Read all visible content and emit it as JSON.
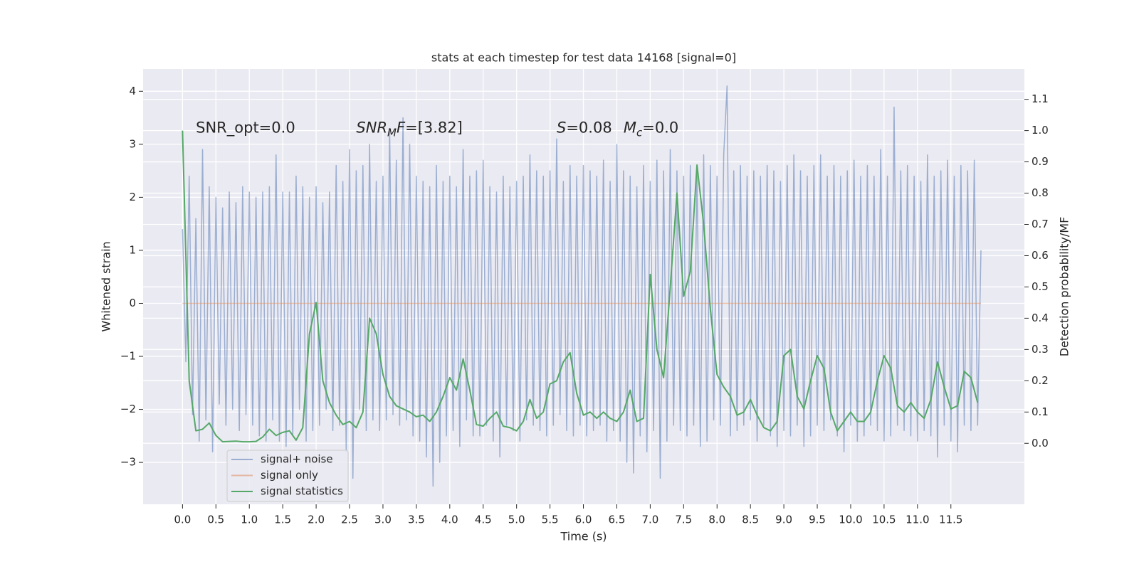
{
  "chart_data": {
    "type": "line",
    "title": "stats at each timestep for test data 14168 [signal=0]",
    "xlabel": "Time (s)",
    "ylabel": "Whitened strain",
    "y2label": "Detection probability/MF",
    "xlim": [
      -0.59,
      12.6
    ],
    "ylim": [
      -3.79,
      4.42
    ],
    "y2lim": [
      -0.195,
      1.197
    ],
    "xticks": [
      {
        "value": 0,
        "label": "0.0"
      },
      0.5,
      {
        "value": 1,
        "label": "1.0"
      },
      1.5,
      {
        "value": 2,
        "label": "2.0"
      },
      2.5,
      {
        "value": 3,
        "label": "3.0"
      },
      3.5,
      {
        "value": 4,
        "label": "4.0"
      },
      4.5,
      {
        "value": 5,
        "label": "5.0"
      },
      5.5,
      {
        "value": 6,
        "label": "6.0"
      },
      6.5,
      {
        "value": 7,
        "label": "7.0"
      },
      7.5,
      {
        "value": 8,
        "label": "8.0"
      },
      8.5,
      {
        "value": 9,
        "label": "9.0"
      },
      9.5,
      {
        "value": 10,
        "label": "10.0"
      },
      10.5,
      {
        "value": 11,
        "label": "11.0"
      },
      11.5
    ],
    "yticks": [
      {
        "value": -3,
        "label": "−3"
      },
      {
        "value": -2,
        "label": "−2"
      },
      {
        "value": -1,
        "label": "−1"
      },
      0,
      1,
      2,
      3,
      4
    ],
    "y2ticks": [
      {
        "value": 0,
        "label": "0.0"
      },
      0.1,
      0.2,
      0.3,
      0.4,
      0.5,
      0.6,
      0.7,
      0.8,
      0.9,
      {
        "value": 1,
        "label": "1.0"
      },
      1.1
    ],
    "grid": true,
    "legend": "lower left",
    "annotations": [
      {
        "parts": [
          {
            "text": "SNR_opt=0.0"
          }
        ]
      },
      {
        "parts": [
          {
            "text": "SNR",
            "style": "italic"
          },
          {
            "text": "M",
            "style": "italic-sub"
          },
          {
            "text": "F",
            "style": "italic"
          },
          {
            "text": "=[3.82]"
          }
        ]
      },
      {
        "parts": [
          {
            "text": "S",
            "style": "italic"
          },
          {
            "text": "=0.08"
          }
        ]
      },
      {
        "parts": [
          {
            "text": "M",
            "style": "italic"
          },
          {
            "text": "c",
            "style": "italic-sub"
          },
          {
            "text": "=0.0"
          }
        ]
      }
    ],
    "series": [
      {
        "name": "signal+ noise",
        "color": "#4c72b0",
        "opacity": 0.5,
        "axis": "y",
        "x": [
          0,
          0.05,
          0.1,
          0.15,
          0.2,
          0.25,
          0.3,
          0.35,
          0.4,
          0.45,
          0.5,
          0.55,
          0.6,
          0.65,
          0.7,
          0.75,
          0.8,
          0.85,
          0.9,
          0.95,
          1,
          1.05,
          1.1,
          1.15,
          1.2,
          1.25,
          1.3,
          1.35,
          1.4,
          1.45,
          1.5,
          1.55,
          1.6,
          1.65,
          1.7,
          1.75,
          1.8,
          1.85,
          1.9,
          1.95,
          2,
          2.05,
          2.1,
          2.15,
          2.2,
          2.25,
          2.3,
          2.35,
          2.4,
          2.45,
          2.5,
          2.55,
          2.6,
          2.65,
          2.7,
          2.75,
          2.8,
          2.85,
          2.9,
          2.95,
          3,
          3.05,
          3.1,
          3.15,
          3.2,
          3.25,
          3.3,
          3.35,
          3.4,
          3.45,
          3.5,
          3.55,
          3.6,
          3.65,
          3.7,
          3.75,
          3.8,
          3.85,
          3.9,
          3.95,
          4,
          4.05,
          4.1,
          4.15,
          4.2,
          4.25,
          4.3,
          4.35,
          4.4,
          4.45,
          4.5,
          4.55,
          4.6,
          4.65,
          4.7,
          4.75,
          4.8,
          4.85,
          4.9,
          4.95,
          5,
          5.05,
          5.1,
          5.15,
          5.2,
          5.25,
          5.3,
          5.35,
          5.4,
          5.45,
          5.5,
          5.55,
          5.6,
          5.65,
          5.7,
          5.75,
          5.8,
          5.85,
          5.9,
          5.95,
          6,
          6.05,
          6.1,
          6.15,
          6.2,
          6.25,
          6.3,
          6.35,
          6.4,
          6.45,
          6.5,
          6.55,
          6.6,
          6.65,
          6.7,
          6.75,
          6.8,
          6.85,
          6.9,
          6.95,
          7,
          7.05,
          7.1,
          7.15,
          7.2,
          7.25,
          7.3,
          7.35,
          7.4,
          7.45,
          7.5,
          7.55,
          7.6,
          7.65,
          7.7,
          7.75,
          7.8,
          7.85,
          7.9,
          7.95,
          8,
          8.05,
          8.1,
          8.15,
          8.2,
          8.25,
          8.3,
          8.35,
          8.4,
          8.45,
          8.5,
          8.55,
          8.6,
          8.65,
          8.7,
          8.75,
          8.8,
          8.85,
          8.9,
          8.95,
          9,
          9.05,
          9.1,
          9.15,
          9.2,
          9.25,
          9.3,
          9.35,
          9.4,
          9.45,
          9.5,
          9.55,
          9.6,
          9.65,
          9.7,
          9.75,
          9.8,
          9.85,
          9.9,
          9.95,
          10,
          10.05,
          10.1,
          10.15,
          10.2,
          10.25,
          10.3,
          10.35,
          10.4,
          10.45,
          10.5,
          10.55,
          10.6,
          10.65,
          10.7,
          10.75,
          10.8,
          10.85,
          10.9,
          10.95,
          11,
          11.05,
          11.1,
          11.15,
          11.2,
          11.25,
          11.3,
          11.35,
          11.4,
          11.45,
          11.5,
          11.55,
          11.6,
          11.65,
          11.7,
          11.75,
          11.8,
          11.85,
          11.9,
          11.95
        ],
        "values": [
          1.4,
          -1.1,
          2.4,
          -2.1,
          1.6,
          -2.6,
          2.9,
          -2.2,
          2.2,
          -2.8,
          2.0,
          -1.9,
          1.8,
          -2.3,
          2.1,
          -2.0,
          1.9,
          -2.4,
          2.2,
          -2.1,
          2.1,
          -2.3,
          2.0,
          -2.5,
          2.1,
          -2.6,
          2.2,
          -2.2,
          2.8,
          -2.6,
          2.1,
          -2.7,
          2.1,
          -2.5,
          2.4,
          -2.0,
          2.2,
          -2.6,
          2.0,
          -2.4,
          2.2,
          -2.3,
          1.9,
          -2.0,
          2.1,
          -2.4,
          2.6,
          -2.3,
          2.3,
          -2.8,
          2.9,
          -3.3,
          2.5,
          -2.0,
          2.6,
          -2.4,
          3.0,
          -2.2,
          2.3,
          -2.4,
          2.4,
          -2.2,
          3.3,
          -2.1,
          2.7,
          -2.3,
          3.5,
          -2.2,
          3.0,
          -2.5,
          2.4,
          -2.6,
          2.3,
          -2.9,
          2.2,
          -3.45,
          2.6,
          -3.0,
          2.3,
          -2.5,
          2.4,
          -2.4,
          2.2,
          -2.7,
          2.9,
          -2.2,
          2.4,
          -2.5,
          2.5,
          -2.5,
          2.7,
          -2.3,
          2.2,
          -2.6,
          2.1,
          -2.9,
          2.4,
          -2.3,
          2.2,
          -2.4,
          2.3,
          -2.6,
          2.4,
          -2.2,
          2.8,
          -2.3,
          2.5,
          -2.4,
          2.4,
          -2.5,
          2.5,
          -2.3,
          3.1,
          -2.1,
          2.3,
          -2.4,
          2.6,
          -2.5,
          2.4,
          -2.3,
          2.6,
          -2.5,
          2.5,
          -2.4,
          2.4,
          -2.3,
          2.7,
          -2.6,
          2.3,
          -2.4,
          3.0,
          -2.6,
          2.5,
          -3.0,
          2.4,
          -3.2,
          2.2,
          -2.5,
          2.6,
          -2.8,
          2.3,
          -2.4,
          2.7,
          -3.3,
          2.5,
          -2.6,
          2.9,
          -2.3,
          2.5,
          -2.4,
          2.4,
          -2.5,
          2.6,
          -2.3,
          2.5,
          -2.7,
          2.8,
          -2.6,
          2.6,
          -2.2,
          2.4,
          -2.3,
          2.8,
          4.1,
          -2.5,
          2.5,
          -2.4,
          2.6,
          -2.3,
          2.4,
          -2.2,
          2.5,
          -2.6,
          2.4,
          -2.3,
          2.6,
          -2.5,
          2.5,
          -2.7,
          2.3,
          -2.4,
          2.6,
          -2.5,
          2.8,
          -2.3,
          2.5,
          -2.7,
          2.4,
          -2.5,
          2.6,
          -2.3,
          2.8,
          -2.4,
          2.4,
          -2.2,
          2.6,
          -2.5,
          2.4,
          -2.8,
          2.5,
          -2.3,
          2.7,
          -2.6,
          2.4,
          -2.5,
          2.6,
          -2.3,
          2.4,
          -2.4,
          2.9,
          -2.6,
          2.4,
          -2.5,
          3.7,
          -2.3,
          2.5,
          -2.4,
          2.6,
          -2.5,
          2.4,
          -2.6,
          2.3,
          -2.4,
          2.8,
          -2.5,
          2.4,
          -2.9,
          2.5,
          -2.3,
          2.7,
          -2.6,
          2.4,
          -2.8,
          2.6,
          -2.3,
          2.5,
          -2.4,
          2.7,
          -2.3,
          1.0
        ]
      },
      {
        "name": "signal only",
        "color": "#dd8452",
        "opacity": 0.5,
        "axis": "y",
        "x": [
          0,
          11.95
        ],
        "values": [
          0,
          0
        ]
      },
      {
        "name": "signal statistics",
        "color": "#55a868",
        "opacity": 1,
        "axis": "y2",
        "x": [
          0,
          0.1,
          0.2,
          0.3,
          0.4,
          0.5,
          0.6,
          0.7,
          0.8,
          0.9,
          1,
          1.1,
          1.2,
          1.3,
          1.4,
          1.5,
          1.6,
          1.7,
          1.8,
          1.9,
          2,
          2.1,
          2.2,
          2.3,
          2.4,
          2.5,
          2.6,
          2.7,
          2.8,
          2.9,
          3,
          3.1,
          3.2,
          3.3,
          3.4,
          3.5,
          3.6,
          3.7,
          3.8,
          3.9,
          4,
          4.1,
          4.2,
          4.3,
          4.4,
          4.5,
          4.6,
          4.7,
          4.8,
          4.9,
          5,
          5.1,
          5.2,
          5.3,
          5.4,
          5.5,
          5.6,
          5.7,
          5.8,
          5.9,
          6,
          6.1,
          6.2,
          6.3,
          6.4,
          6.5,
          6.6,
          6.7,
          6.8,
          6.9,
          7,
          7.1,
          7.2,
          7.3,
          7.4,
          7.5,
          7.6,
          7.7,
          7.8,
          7.9,
          8,
          8.1,
          8.2,
          8.3,
          8.4,
          8.5,
          8.6,
          8.7,
          8.8,
          8.9,
          9,
          9.1,
          9.2,
          9.3,
          9.4,
          9.5,
          9.6,
          9.7,
          9.8,
          9.9,
          10,
          10.1,
          10.2,
          10.3,
          10.4,
          10.5,
          10.6,
          10.7,
          10.8,
          10.9,
          11,
          11.1,
          11.2,
          11.3,
          11.4,
          11.5,
          11.6,
          11.7,
          11.8,
          11.9
        ],
        "values": [
          1.0,
          0.2,
          0.04,
          0.045,
          0.065,
          0.025,
          0.005,
          0.006,
          0.007,
          0.005,
          0.005,
          0.006,
          0.02,
          0.045,
          0.025,
          0.035,
          0.04,
          0.01,
          0.05,
          0.35,
          0.45,
          0.2,
          0.13,
          0.09,
          0.06,
          0.07,
          0.05,
          0.1,
          0.4,
          0.35,
          0.22,
          0.15,
          0.12,
          0.11,
          0.1,
          0.085,
          0.09,
          0.07,
          0.1,
          0.15,
          0.21,
          0.17,
          0.27,
          0.17,
          0.06,
          0.055,
          0.08,
          0.1,
          0.055,
          0.05,
          0.04,
          0.07,
          0.14,
          0.08,
          0.1,
          0.19,
          0.2,
          0.26,
          0.29,
          0.16,
          0.09,
          0.1,
          0.08,
          0.1,
          0.08,
          0.07,
          0.1,
          0.17,
          0.07,
          0.08,
          0.54,
          0.3,
          0.21,
          0.5,
          0.8,
          0.47,
          0.55,
          0.89,
          0.7,
          0.43,
          0.22,
          0.18,
          0.15,
          0.09,
          0.1,
          0.14,
          0.09,
          0.05,
          0.04,
          0.07,
          0.28,
          0.3,
          0.15,
          0.11,
          0.2,
          0.28,
          0.24,
          0.1,
          0.04,
          0.07,
          0.1,
          0.07,
          0.07,
          0.1,
          0.2,
          0.28,
          0.24,
          0.12,
          0.1,
          0.13,
          0.1,
          0.08,
          0.14,
          0.26,
          0.18,
          0.11,
          0.12,
          0.23,
          0.21,
          0.13
        ]
      }
    ]
  }
}
